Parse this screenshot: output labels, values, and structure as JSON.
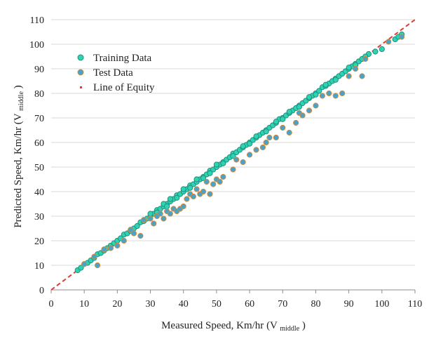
{
  "chart_data": {
    "type": "scatter",
    "title": "",
    "xlabel": "Measured Speed, Km/hr",
    "xlabel_sub": "middle",
    "ylabel": "Predicted Speed, Km/hr",
    "ylabel_sub": "middle",
    "xlim": [
      0,
      110
    ],
    "ylim": [
      0,
      110
    ],
    "x_ticks": [
      "0",
      "10",
      "20",
      "30",
      "40",
      "50",
      "60",
      "70",
      "80",
      "90",
      "100",
      "110"
    ],
    "y_ticks": [
      "0",
      "10",
      "20",
      "30",
      "40",
      "50",
      "60",
      "70",
      "80",
      "90",
      "100",
      "110"
    ],
    "grid": "horizontal",
    "legend_position": "top-left",
    "series": [
      {
        "name": "Training Data",
        "marker": "circle",
        "color": "#2ed3b4",
        "edge_color": "#1f8f7b",
        "points": [
          [
            8,
            8
          ],
          [
            9,
            9
          ],
          [
            10,
            10.5
          ],
          [
            11,
            11
          ],
          [
            12,
            12
          ],
          [
            13,
            13
          ],
          [
            14,
            14.5
          ],
          [
            15,
            15
          ],
          [
            16,
            16
          ],
          [
            17,
            17
          ],
          [
            18,
            18
          ],
          [
            19,
            19
          ],
          [
            20,
            20
          ],
          [
            21,
            21
          ],
          [
            22,
            22.5
          ],
          [
            23,
            23
          ],
          [
            24,
            24
          ],
          [
            25,
            25
          ],
          [
            26,
            26
          ],
          [
            27,
            27.5
          ],
          [
            28,
            28
          ],
          [
            29,
            29
          ],
          [
            30,
            30
          ],
          [
            31,
            31
          ],
          [
            32,
            32.5
          ],
          [
            33,
            33
          ],
          [
            34,
            34
          ],
          [
            35,
            35
          ],
          [
            36,
            36
          ],
          [
            37,
            37
          ],
          [
            38,
            38.5
          ],
          [
            39,
            39
          ],
          [
            40,
            40
          ],
          [
            41,
            41
          ],
          [
            42,
            42.5
          ],
          [
            43,
            43
          ],
          [
            44,
            44
          ],
          [
            45,
            45
          ],
          [
            46,
            46
          ],
          [
            47,
            47
          ],
          [
            48,
            48.5
          ],
          [
            49,
            49
          ],
          [
            50,
            50
          ],
          [
            51,
            51
          ],
          [
            52,
            52
          ],
          [
            53,
            53
          ],
          [
            54,
            54
          ],
          [
            55,
            55.5
          ],
          [
            56,
            56
          ],
          [
            57,
            57
          ],
          [
            58,
            58
          ],
          [
            59,
            59
          ],
          [
            60,
            60
          ],
          [
            61,
            61
          ],
          [
            62,
            62
          ],
          [
            63,
            63
          ],
          [
            64,
            64
          ],
          [
            65,
            65
          ],
          [
            66,
            66
          ],
          [
            67,
            67
          ],
          [
            68,
            68
          ],
          [
            69,
            69.5
          ],
          [
            70,
            70
          ],
          [
            71,
            71
          ],
          [
            72,
            72
          ],
          [
            73,
            73
          ],
          [
            74,
            74
          ],
          [
            75,
            75
          ],
          [
            76,
            76
          ],
          [
            77,
            77
          ],
          [
            78,
            78
          ],
          [
            79,
            79
          ],
          [
            80,
            80
          ],
          [
            81,
            81
          ],
          [
            82,
            82.5
          ],
          [
            83,
            83
          ],
          [
            84,
            84
          ],
          [
            85,
            85
          ],
          [
            86,
            86
          ],
          [
            87,
            87
          ],
          [
            88,
            88
          ],
          [
            89,
            89
          ],
          [
            90,
            90
          ],
          [
            91,
            91
          ],
          [
            92,
            92
          ],
          [
            93,
            93
          ],
          [
            94,
            94
          ],
          [
            96,
            96
          ],
          [
            98,
            97
          ],
          [
            100,
            98
          ],
          [
            104,
            102
          ],
          [
            105,
            103
          ],
          [
            106,
            104
          ],
          [
            30,
            31
          ],
          [
            32,
            31.5
          ],
          [
            34,
            35
          ],
          [
            35,
            34
          ],
          [
            36,
            37
          ],
          [
            38,
            37.5
          ],
          [
            40,
            41
          ],
          [
            42,
            41.5
          ],
          [
            44,
            45
          ],
          [
            46,
            45.5
          ],
          [
            48,
            47.5
          ],
          [
            50,
            51
          ],
          [
            52,
            51.5
          ],
          [
            55,
            54.5
          ],
          [
            58,
            58.5
          ],
          [
            60,
            59.5
          ],
          [
            62,
            62.5
          ],
          [
            65,
            64.5
          ],
          [
            68,
            68.5
          ],
          [
            70,
            69.5
          ],
          [
            72,
            72.5
          ],
          [
            75,
            74.5
          ],
          [
            78,
            78.5
          ],
          [
            80,
            79.5
          ],
          [
            83,
            83.5
          ],
          [
            86,
            85.5
          ],
          [
            90,
            90.5
          ],
          [
            92,
            91.5
          ],
          [
            95,
            95
          ]
        ]
      },
      {
        "name": "Test Data",
        "marker": "circle",
        "color": "#4aa3c7",
        "edge_color": "#d28a3e",
        "points": [
          [
            10,
            10.5
          ],
          [
            13,
            13.5
          ],
          [
            14,
            10
          ],
          [
            16,
            16.5
          ],
          [
            18,
            17
          ],
          [
            20,
            18
          ],
          [
            22,
            20
          ],
          [
            24,
            24.5
          ],
          [
            25,
            23
          ],
          [
            27,
            22
          ],
          [
            28,
            28.5
          ],
          [
            30,
            29
          ],
          [
            31,
            27
          ],
          [
            32,
            30
          ],
          [
            33,
            31
          ],
          [
            34,
            29
          ],
          [
            35,
            32
          ],
          [
            36,
            31
          ],
          [
            37,
            33
          ],
          [
            38,
            32
          ],
          [
            39,
            33
          ],
          [
            40,
            34
          ],
          [
            41,
            37
          ],
          [
            42,
            39
          ],
          [
            43,
            38
          ],
          [
            44,
            41
          ],
          [
            45,
            39
          ],
          [
            46,
            40
          ],
          [
            47,
            44
          ],
          [
            48,
            39
          ],
          [
            49,
            43
          ],
          [
            50,
            45
          ],
          [
            51,
            44
          ],
          [
            52,
            46
          ],
          [
            55,
            49
          ],
          [
            56,
            53
          ],
          [
            58,
            52
          ],
          [
            60,
            55
          ],
          [
            62,
            57
          ],
          [
            64,
            58
          ],
          [
            65,
            60
          ],
          [
            66,
            62
          ],
          [
            68,
            62
          ],
          [
            70,
            66
          ],
          [
            72,
            64
          ],
          [
            74,
            68
          ],
          [
            75,
            72
          ],
          [
            76,
            71
          ],
          [
            78,
            73
          ],
          [
            80,
            75
          ],
          [
            82,
            79
          ],
          [
            84,
            80
          ],
          [
            86,
            79
          ],
          [
            88,
            80
          ],
          [
            90,
            87
          ],
          [
            92,
            90
          ],
          [
            94,
            87
          ],
          [
            95,
            94
          ],
          [
            102,
            101
          ],
          [
            106,
            103
          ]
        ]
      },
      {
        "name": "Line of Equity",
        "marker": "dashed-line",
        "color": "#e53935",
        "points": [
          [
            0,
            0
          ],
          [
            110,
            110
          ]
        ]
      }
    ]
  }
}
